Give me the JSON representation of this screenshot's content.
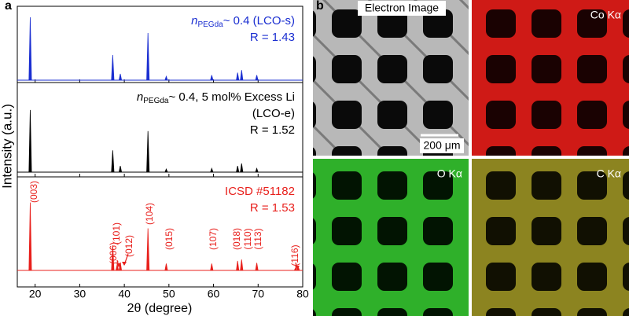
{
  "figure": {
    "panel_labels": [
      "a",
      "b"
    ],
    "y_label": "Intensity (a.u.)",
    "maps": [
      {
        "label": "Electron Image"
      },
      {
        "label": "Co Kα"
      },
      {
        "label": "O Kα"
      },
      {
        "label": "C Kα"
      }
    ],
    "scale_bar": "200 μm"
  },
  "chart_data": [
    {
      "type": "xrd",
      "color": "#1b2fd1",
      "label_var": "n",
      "label_sub": "PEGda",
      "label_rest": "~ 0.4 (LCO-s)",
      "r_text": "R = 1.43",
      "x": [
        18.9,
        37.4,
        39.1,
        45.3,
        49.4,
        59.6,
        65.4,
        66.3,
        69.7
      ],
      "values": [
        100,
        40,
        10,
        75,
        6,
        8,
        12,
        16,
        8
      ],
      "ylim": [
        0,
        110
      ]
    },
    {
      "type": "xrd",
      "color": "#000000",
      "label_var": "n",
      "label_sub": "PEGda",
      "label_rest": "~ 0.4, 5 mol% Excess Li",
      "label_line2": "(LCO-e)",
      "r_text": "R = 1.52",
      "x": [
        18.9,
        37.4,
        39.1,
        45.3,
        49.4,
        59.6,
        65.4,
        66.3,
        69.7
      ],
      "values": [
        100,
        35,
        10,
        66,
        5,
        6,
        10,
        14,
        6
      ],
      "ylim": [
        0,
        110
      ]
    },
    {
      "type": "xrd",
      "color": "#e8201c",
      "label_rest": "ICSD #51182",
      "r_text": "R = 1.53",
      "x": [
        18.9,
        37.4,
        38.4,
        39.1,
        45.3,
        49.4,
        59.6,
        65.4,
        66.3,
        69.7,
        78.4,
        79.0
      ],
      "values": [
        100,
        37,
        9,
        12,
        62,
        10,
        10,
        14,
        16,
        11,
        4,
        5
      ],
      "ylim": [
        0,
        110
      ],
      "peak_labels": [
        "(003)",
        "(101)",
        "(006)",
        "(012)",
        "(104)",
        "(015)",
        "(107)",
        "(018)",
        "(110)",
        "(113)",
        "(116)"
      ],
      "xlabel": "2θ (degree)",
      "xlim": [
        16,
        80
      ],
      "xticks": [
        20,
        30,
        40,
        50,
        60,
        70,
        80
      ]
    }
  ]
}
